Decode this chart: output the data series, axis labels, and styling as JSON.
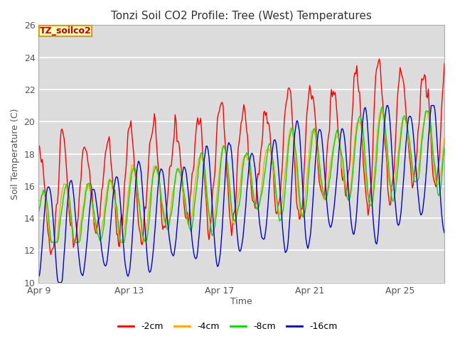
{
  "title": "Tonzi Soil CO2 Profile: Tree (West) Temperatures",
  "ylabel": "Soil Temperature (C)",
  "xlabel": "Time",
  "ylim": [
    10,
    26
  ],
  "bg_color": "#dcdcdc",
  "fig_color": "#ffffff",
  "legend_title": "TZ_soilco2",
  "series": [
    {
      "label": "-2cm",
      "color": "#ff0000"
    },
    {
      "label": "-4cm",
      "color": "#ffa500"
    },
    {
      "label": "-8cm",
      "color": "#00dd00"
    },
    {
      "label": "-16cm",
      "color": "#0000cc"
    }
  ],
  "xtick_positions": [
    0,
    96,
    192,
    288,
    384
  ],
  "xtick_labels": [
    "Apr 9",
    "Apr 13",
    "Apr 17",
    "Apr 21",
    "Apr 25"
  ],
  "ytick_positions": [
    10,
    12,
    14,
    16,
    18,
    20,
    22,
    24,
    26
  ],
  "n_points": 432
}
